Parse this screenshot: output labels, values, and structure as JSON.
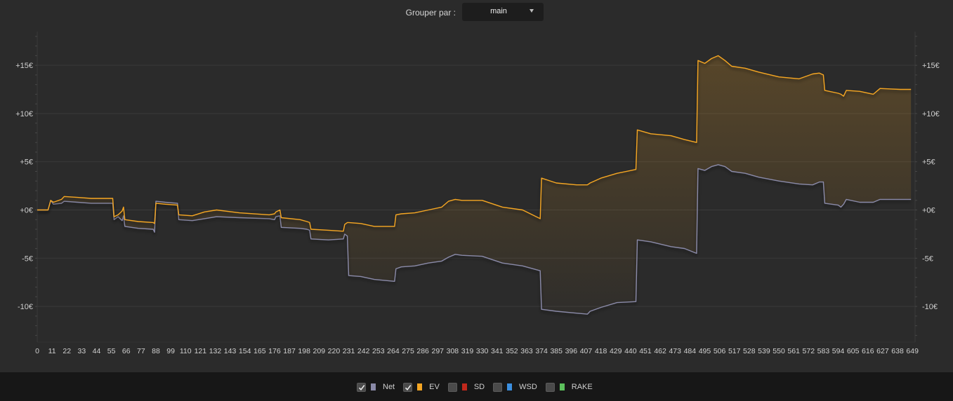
{
  "toolbar": {
    "group_by_label": "Grouper par :",
    "group_by_value": "main"
  },
  "legend": [
    {
      "label": "Net",
      "checked": true,
      "color": "#8a8aa8"
    },
    {
      "label": "EV",
      "checked": true,
      "color": "#f5a623"
    },
    {
      "label": "SD",
      "checked": false,
      "color": "#c0281c"
    },
    {
      "label": "WSD",
      "checked": false,
      "color": "#3b8fe0"
    },
    {
      "label": "RAKE",
      "checked": false,
      "color": "#5cc05c"
    }
  ],
  "chart_data": {
    "type": "line",
    "xlabel": "",
    "ylabel": "",
    "xlim": [
      0,
      651
    ],
    "ylim": [
      -13.7,
      18.5
    ],
    "x_ticks": [
      0,
      11,
      22,
      33,
      44,
      55,
      66,
      77,
      88,
      99,
      110,
      121,
      132,
      143,
      154,
      165,
      176,
      187,
      198,
      209,
      220,
      231,
      242,
      253,
      264,
      275,
      286,
      297,
      308,
      319,
      330,
      341,
      352,
      363,
      374,
      385,
      396,
      407,
      418,
      429,
      440,
      451,
      462,
      473,
      484,
      495,
      506,
      517,
      528,
      539,
      550,
      561,
      572,
      583,
      594,
      605,
      616,
      627,
      638,
      649
    ],
    "y_ticks": [
      {
        "value": 15,
        "label": "+15€"
      },
      {
        "value": 10,
        "label": "+10€"
      },
      {
        "value": 5,
        "label": "+5€"
      },
      {
        "value": 0,
        "label": "+0€"
      },
      {
        "value": -5,
        "label": "-5€"
      },
      {
        "value": -10,
        "label": "-10€"
      }
    ],
    "grid": true,
    "series": [
      {
        "name": "Net",
        "color": "#8a8aa8",
        "points": [
          [
            0,
            0
          ],
          [
            8,
            0
          ],
          [
            10,
            1
          ],
          [
            12,
            0.6
          ],
          [
            18,
            0.7
          ],
          [
            20,
            0.9
          ],
          [
            30,
            0.8
          ],
          [
            40,
            0.7
          ],
          [
            56,
            0.7
          ],
          [
            57,
            -1.0
          ],
          [
            60,
            -0.7
          ],
          [
            63,
            -1.1
          ],
          [
            64,
            -0.6
          ],
          [
            65,
            -1.7
          ],
          [
            75,
            -1.9
          ],
          [
            86,
            -2.0
          ],
          [
            87,
            -2.3
          ],
          [
            88,
            0.9
          ],
          [
            95,
            0.8
          ],
          [
            104,
            0.7
          ],
          [
            105,
            -1.0
          ],
          [
            115,
            -1.1
          ],
          [
            124,
            -0.9
          ],
          [
            133,
            -0.7
          ],
          [
            150,
            -0.8
          ],
          [
            172,
            -0.9
          ],
          [
            176,
            -1.0
          ],
          [
            177,
            -0.7
          ],
          [
            180,
            -0.6
          ],
          [
            181,
            -1.8
          ],
          [
            195,
            -1.9
          ],
          [
            200,
            -2.0
          ],
          [
            202,
            -2.1
          ],
          [
            203,
            -3.0
          ],
          [
            216,
            -3.1
          ],
          [
            227,
            -3.0
          ],
          [
            228,
            -2.5
          ],
          [
            230,
            -2.7
          ],
          [
            231,
            -6.8
          ],
          [
            240,
            -6.9
          ],
          [
            250,
            -7.2
          ],
          [
            265,
            -7.4
          ],
          [
            266,
            -6.1
          ],
          [
            270,
            -5.9
          ],
          [
            280,
            -5.8
          ],
          [
            290,
            -5.5
          ],
          [
            300,
            -5.3
          ],
          [
            305,
            -4.9
          ],
          [
            310,
            -4.6
          ],
          [
            315,
            -4.7
          ],
          [
            330,
            -4.8
          ],
          [
            345,
            -5.5
          ],
          [
            360,
            -5.8
          ],
          [
            373,
            -6.3
          ],
          [
            374,
            -10.3
          ],
          [
            385,
            -10.5
          ],
          [
            400,
            -10.7
          ],
          [
            408,
            -10.8
          ],
          [
            410,
            -10.5
          ],
          [
            418,
            -10.1
          ],
          [
            430,
            -9.6
          ],
          [
            444,
            -9.5
          ],
          [
            445,
            -3.1
          ],
          [
            455,
            -3.3
          ],
          [
            470,
            -3.8
          ],
          [
            480,
            -4.0
          ],
          [
            489,
            -4.5
          ],
          [
            490,
            4.3
          ],
          [
            495,
            4.1
          ],
          [
            500,
            4.5
          ],
          [
            505,
            4.7
          ],
          [
            510,
            4.5
          ],
          [
            515,
            4.0
          ],
          [
            525,
            3.8
          ],
          [
            535,
            3.4
          ],
          [
            550,
            3.0
          ],
          [
            565,
            2.7
          ],
          [
            575,
            2.6
          ],
          [
            580,
            2.9
          ],
          [
            583,
            2.9
          ],
          [
            584,
            0.7
          ],
          [
            594,
            0.5
          ],
          [
            596,
            0.3
          ],
          [
            598,
            0.6
          ],
          [
            600,
            1.1
          ],
          [
            610,
            0.8
          ],
          [
            620,
            0.8
          ],
          [
            625,
            1.1
          ],
          [
            640,
            1.1
          ],
          [
            648,
            1.1
          ]
        ]
      },
      {
        "name": "EV",
        "color": "#f5a623",
        "points": [
          [
            0,
            0
          ],
          [
            8,
            0
          ],
          [
            10,
            1
          ],
          [
            12,
            0.8
          ],
          [
            18,
            1.1
          ],
          [
            20,
            1.4
          ],
          [
            30,
            1.3
          ],
          [
            40,
            1.2
          ],
          [
            56,
            1.2
          ],
          [
            57,
            -0.7
          ],
          [
            60,
            -0.5
          ],
          [
            63,
            -0.1
          ],
          [
            64,
            0.3
          ],
          [
            65,
            -1.0
          ],
          [
            75,
            -1.2
          ],
          [
            86,
            -1.3
          ],
          [
            87,
            -1.4
          ],
          [
            88,
            0.7
          ],
          [
            95,
            0.6
          ],
          [
            104,
            0.5
          ],
          [
            105,
            -0.5
          ],
          [
            115,
            -0.6
          ],
          [
            124,
            -0.2
          ],
          [
            133,
            0.0
          ],
          [
            150,
            -0.3
          ],
          [
            172,
            -0.5
          ],
          [
            176,
            -0.4
          ],
          [
            177,
            -0.2
          ],
          [
            180,
            0.0
          ],
          [
            181,
            -0.8
          ],
          [
            195,
            -1.0
          ],
          [
            200,
            -1.2
          ],
          [
            202,
            -1.3
          ],
          [
            203,
            -2.0
          ],
          [
            216,
            -2.1
          ],
          [
            227,
            -2.2
          ],
          [
            228,
            -1.5
          ],
          [
            230,
            -1.3
          ],
          [
            231,
            -1.3
          ],
          [
            240,
            -1.4
          ],
          [
            250,
            -1.7
          ],
          [
            265,
            -1.7
          ],
          [
            266,
            -0.5
          ],
          [
            270,
            -0.4
          ],
          [
            280,
            -0.3
          ],
          [
            290,
            0.0
          ],
          [
            300,
            0.3
          ],
          [
            305,
            0.9
          ],
          [
            310,
            1.1
          ],
          [
            315,
            1.0
          ],
          [
            330,
            1.0
          ],
          [
            345,
            0.3
          ],
          [
            360,
            0.0
          ],
          [
            373,
            -0.9
          ],
          [
            374,
            3.3
          ],
          [
            385,
            2.8
          ],
          [
            400,
            2.6
          ],
          [
            408,
            2.6
          ],
          [
            410,
            2.8
          ],
          [
            418,
            3.3
          ],
          [
            430,
            3.8
          ],
          [
            444,
            4.2
          ],
          [
            445,
            8.3
          ],
          [
            455,
            7.9
          ],
          [
            470,
            7.7
          ],
          [
            480,
            7.3
          ],
          [
            489,
            7.0
          ],
          [
            490,
            15.5
          ],
          [
            495,
            15.2
          ],
          [
            500,
            15.7
          ],
          [
            505,
            16.0
          ],
          [
            510,
            15.5
          ],
          [
            515,
            14.9
          ],
          [
            525,
            14.7
          ],
          [
            535,
            14.3
          ],
          [
            550,
            13.8
          ],
          [
            565,
            13.6
          ],
          [
            575,
            14.1
          ],
          [
            580,
            14.2
          ],
          [
            583,
            14.0
          ],
          [
            584,
            12.4
          ],
          [
            594,
            12.1
          ],
          [
            596,
            12.0
          ],
          [
            598,
            11.8
          ],
          [
            600,
            12.4
          ],
          [
            610,
            12.3
          ],
          [
            620,
            12.0
          ],
          [
            625,
            12.6
          ],
          [
            640,
            12.5
          ],
          [
            648,
            12.5
          ]
        ]
      }
    ]
  }
}
